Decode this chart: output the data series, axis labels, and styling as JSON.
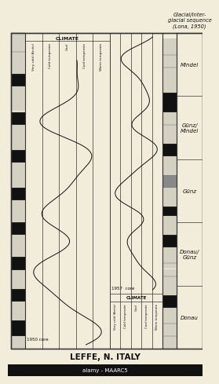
{
  "bg_color": "#f2eddb",
  "lc": "#333333",
  "title_bottom": "LEFFE, N. ITALY",
  "title_top_right": "Glacial/Inter-\nglacial sequence\n(Lona, 1950)",
  "climate_labels": [
    "Very cold (Arctic)",
    "Cold temperate",
    "Cool",
    "Cool temperate",
    "Warm temperate"
  ],
  "glacial_labels": [
    "Mindel",
    "Günz/\nMindel",
    "Günz",
    "Donau/\nGünz",
    "Donau"
  ],
  "core1950_label": "1950 core",
  "core1957_label": "1957  core"
}
